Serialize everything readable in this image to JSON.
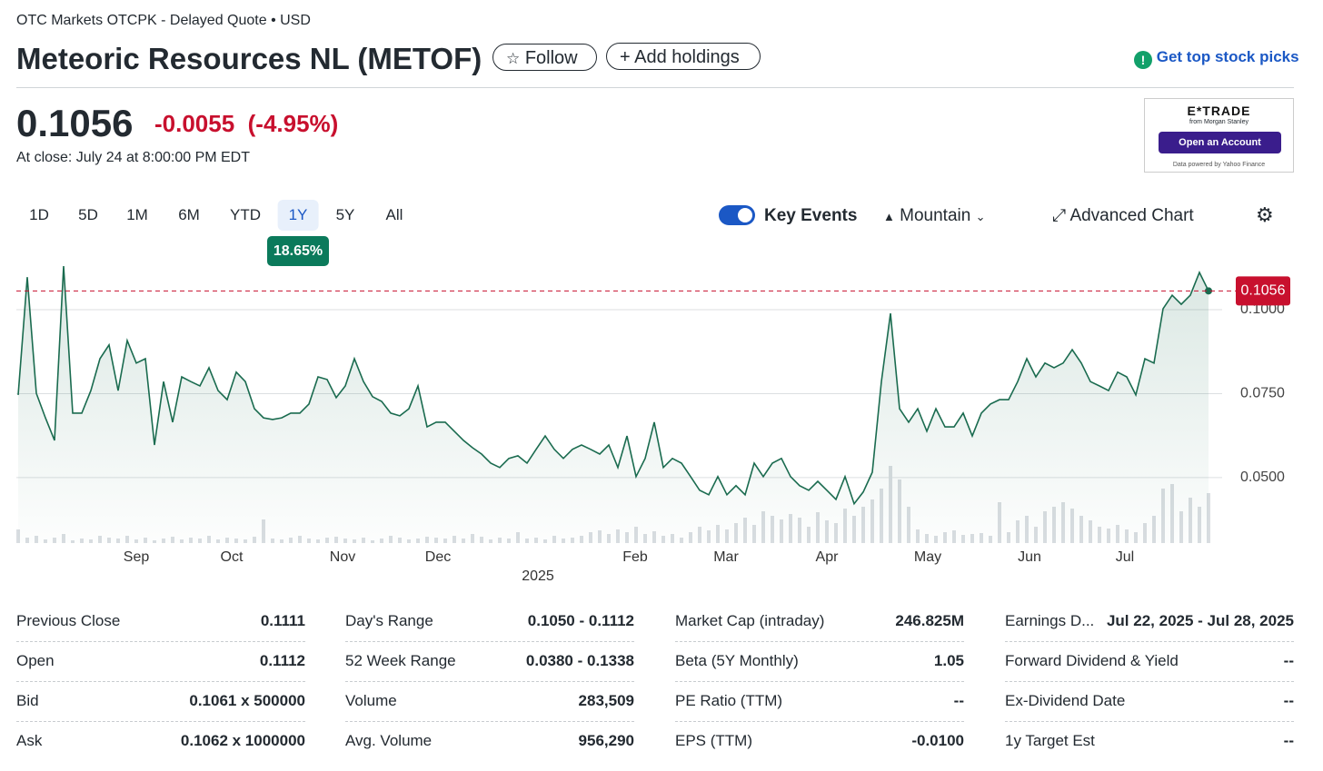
{
  "header": {
    "exchange": "OTC Markets OTCPK - Delayed Quote • USD",
    "title": "Meteoric Resources NL (METOF)",
    "follow": "Follow",
    "add_holdings": "Add holdings",
    "top_picks": "Get top stock picks"
  },
  "quote": {
    "price": "0.1056",
    "change": "-0.0055",
    "change_percent": "(-4.95%)",
    "close_time": "At close: July 24 at 8:00:00 PM EDT"
  },
  "ad": {
    "brand": "E*TRADE",
    "sub": "from Morgan Stanley",
    "cta": "Open an Account",
    "note": "Data powered by Yahoo Finance"
  },
  "ranges": [
    "1D",
    "5D",
    "1M",
    "6M",
    "YTD",
    "1Y",
    "5Y",
    "All"
  ],
  "range_change": "18.65%",
  "toolbar": {
    "key_events": "Key Events",
    "chart_type": "Mountain",
    "advanced": "Advanced Chart"
  },
  "chart_data": {
    "type": "area",
    "color": "#1a6b4f",
    "volume_color": "#d9dde1",
    "values": [
      0.0746,
      0.1097,
      0.0751,
      0.0678,
      0.0611,
      0.113,
      0.0692,
      0.0692,
      0.0759,
      0.0854,
      0.0895,
      0.0759,
      0.0908,
      0.0841,
      0.0854,
      0.0597,
      0.0786,
      0.0665,
      0.08,
      0.0786,
      0.0773,
      0.0827,
      0.0759,
      0.0732,
      0.0814,
      0.0786,
      0.0705,
      0.0678,
      0.0673,
      0.0678,
      0.0692,
      0.0692,
      0.0719,
      0.08,
      0.0792,
      0.0738,
      0.0773,
      0.0854,
      0.0786,
      0.0741,
      0.0727,
      0.0692,
      0.0684,
      0.0705,
      0.0773,
      0.0651,
      0.0665,
      0.0665,
      0.0638,
      0.0611,
      0.0589,
      0.057,
      0.0543,
      0.053,
      0.0557,
      0.0565,
      0.0543,
      0.0584,
      0.0624,
      0.0584,
      0.0557,
      0.0584,
      0.0597,
      0.0584,
      0.057,
      0.0597,
      0.053,
      0.0624,
      0.0503,
      0.0557,
      0.0665,
      0.053,
      0.0557,
      0.0543,
      0.0503,
      0.0462,
      0.0449,
      0.0503,
      0.0449,
      0.0476,
      0.0449,
      0.0543,
      0.0503,
      0.0543,
      0.0557,
      0.0503,
      0.0476,
      0.0462,
      0.0489,
      0.0462,
      0.0435,
      0.0503,
      0.0422,
      0.0457,
      0.0516,
      0.0786,
      0.0989,
      0.0705,
      0.0665,
      0.0705,
      0.0638,
      0.0705,
      0.0651,
      0.0651,
      0.0692,
      0.0624,
      0.0692,
      0.0719,
      0.0732,
      0.0732,
      0.0786,
      0.0854,
      0.08,
      0.0841,
      0.0827,
      0.0841,
      0.0881,
      0.0841,
      0.0786,
      0.0773,
      0.0759,
      0.0814,
      0.08,
      0.0746,
      0.0854,
      0.0841,
      0.1003,
      0.1043,
      0.1016,
      0.1043,
      0.1111,
      0.1056
    ],
    "volume": [
      15,
      6,
      8,
      4,
      6,
      10,
      3,
      5,
      4,
      8,
      6,
      5,
      8,
      4,
      6,
      3,
      5,
      7,
      4,
      6,
      5,
      8,
      4,
      6,
      5,
      4,
      7,
      26,
      5,
      4,
      6,
      8,
      5,
      4,
      6,
      7,
      5,
      4,
      6,
      3,
      5,
      8,
      6,
      4,
      5,
      7,
      6,
      5,
      8,
      5,
      10,
      7,
      4,
      6,
      5,
      12,
      5,
      6,
      4,
      8,
      5,
      6,
      8,
      12,
      14,
      10,
      15,
      12,
      18,
      10,
      13,
      8,
      10,
      6,
      12,
      18,
      14,
      20,
      15,
      22,
      28,
      20,
      35,
      30,
      26,
      32,
      28,
      18,
      34,
      25,
      22,
      38,
      30,
      40,
      48,
      60,
      85,
      70,
      40,
      15,
      10,
      8,
      12,
      14,
      9,
      10,
      11,
      8,
      45,
      12,
      25,
      30,
      18,
      35,
      40,
      45,
      38,
      30,
      25,
      18,
      16,
      20,
      15,
      12,
      22,
      30,
      60,
      65,
      35,
      50,
      40,
      55
    ],
    "vlim": [
      0,
      100
    ],
    "xlim": [
      0,
      131
    ],
    "xticks": [
      {
        "value": 13,
        "label": "Sep"
      },
      {
        "value": 23.5,
        "label": "Oct"
      },
      {
        "value": 35.7,
        "label": "Nov"
      },
      {
        "value": 46.2,
        "label": "Dec"
      },
      {
        "value": 67.9,
        "label": "Feb"
      },
      {
        "value": 77.9,
        "label": "Mar"
      },
      {
        "value": 89,
        "label": "Apr"
      },
      {
        "value": 100.1,
        "label": "May"
      },
      {
        "value": 111.3,
        "label": "Jun"
      },
      {
        "value": 121.8,
        "label": "Jul"
      }
    ],
    "year_tick": {
      "value": 57.2,
      "label": "2025"
    },
    "ylim": [
      0.0305,
      0.1138
    ],
    "yticks": [
      {
        "value": 0.05,
        "label": "0.0500"
      },
      {
        "value": 0.075,
        "label": "0.0750"
      },
      {
        "value": 0.1,
        "label": "0.1000"
      }
    ],
    "grid": true,
    "last_price": 0.1056,
    "last_price_color": "#c8102e"
  },
  "stats": [
    [
      [
        "Previous Close",
        "0.1111"
      ],
      [
        "Open",
        "0.1112"
      ],
      [
        "Bid",
        "0.1061 x 500000"
      ],
      [
        "Ask",
        "0.1062 x 1000000"
      ]
    ],
    [
      [
        "Day's Range",
        "0.1050 - 0.1112"
      ],
      [
        "52 Week Range",
        "0.0380 - 0.1338"
      ],
      [
        "Volume",
        "283,509"
      ],
      [
        "Avg. Volume",
        "956,290"
      ]
    ],
    [
      [
        "Market Cap (intraday)",
        "246.825M"
      ],
      [
        "Beta (5Y Monthly)",
        "1.05"
      ],
      [
        "PE Ratio (TTM)",
        "--"
      ],
      [
        "EPS (TTM)",
        "-0.0100"
      ]
    ],
    [
      [
        "Earnings D...",
        "Jul 22, 2025 - Jul 28, 2025"
      ],
      [
        "Forward Dividend & Yield",
        "--"
      ],
      [
        "Ex-Dividend Date",
        "--"
      ],
      [
        "1y Target Est",
        "--"
      ]
    ]
  ]
}
